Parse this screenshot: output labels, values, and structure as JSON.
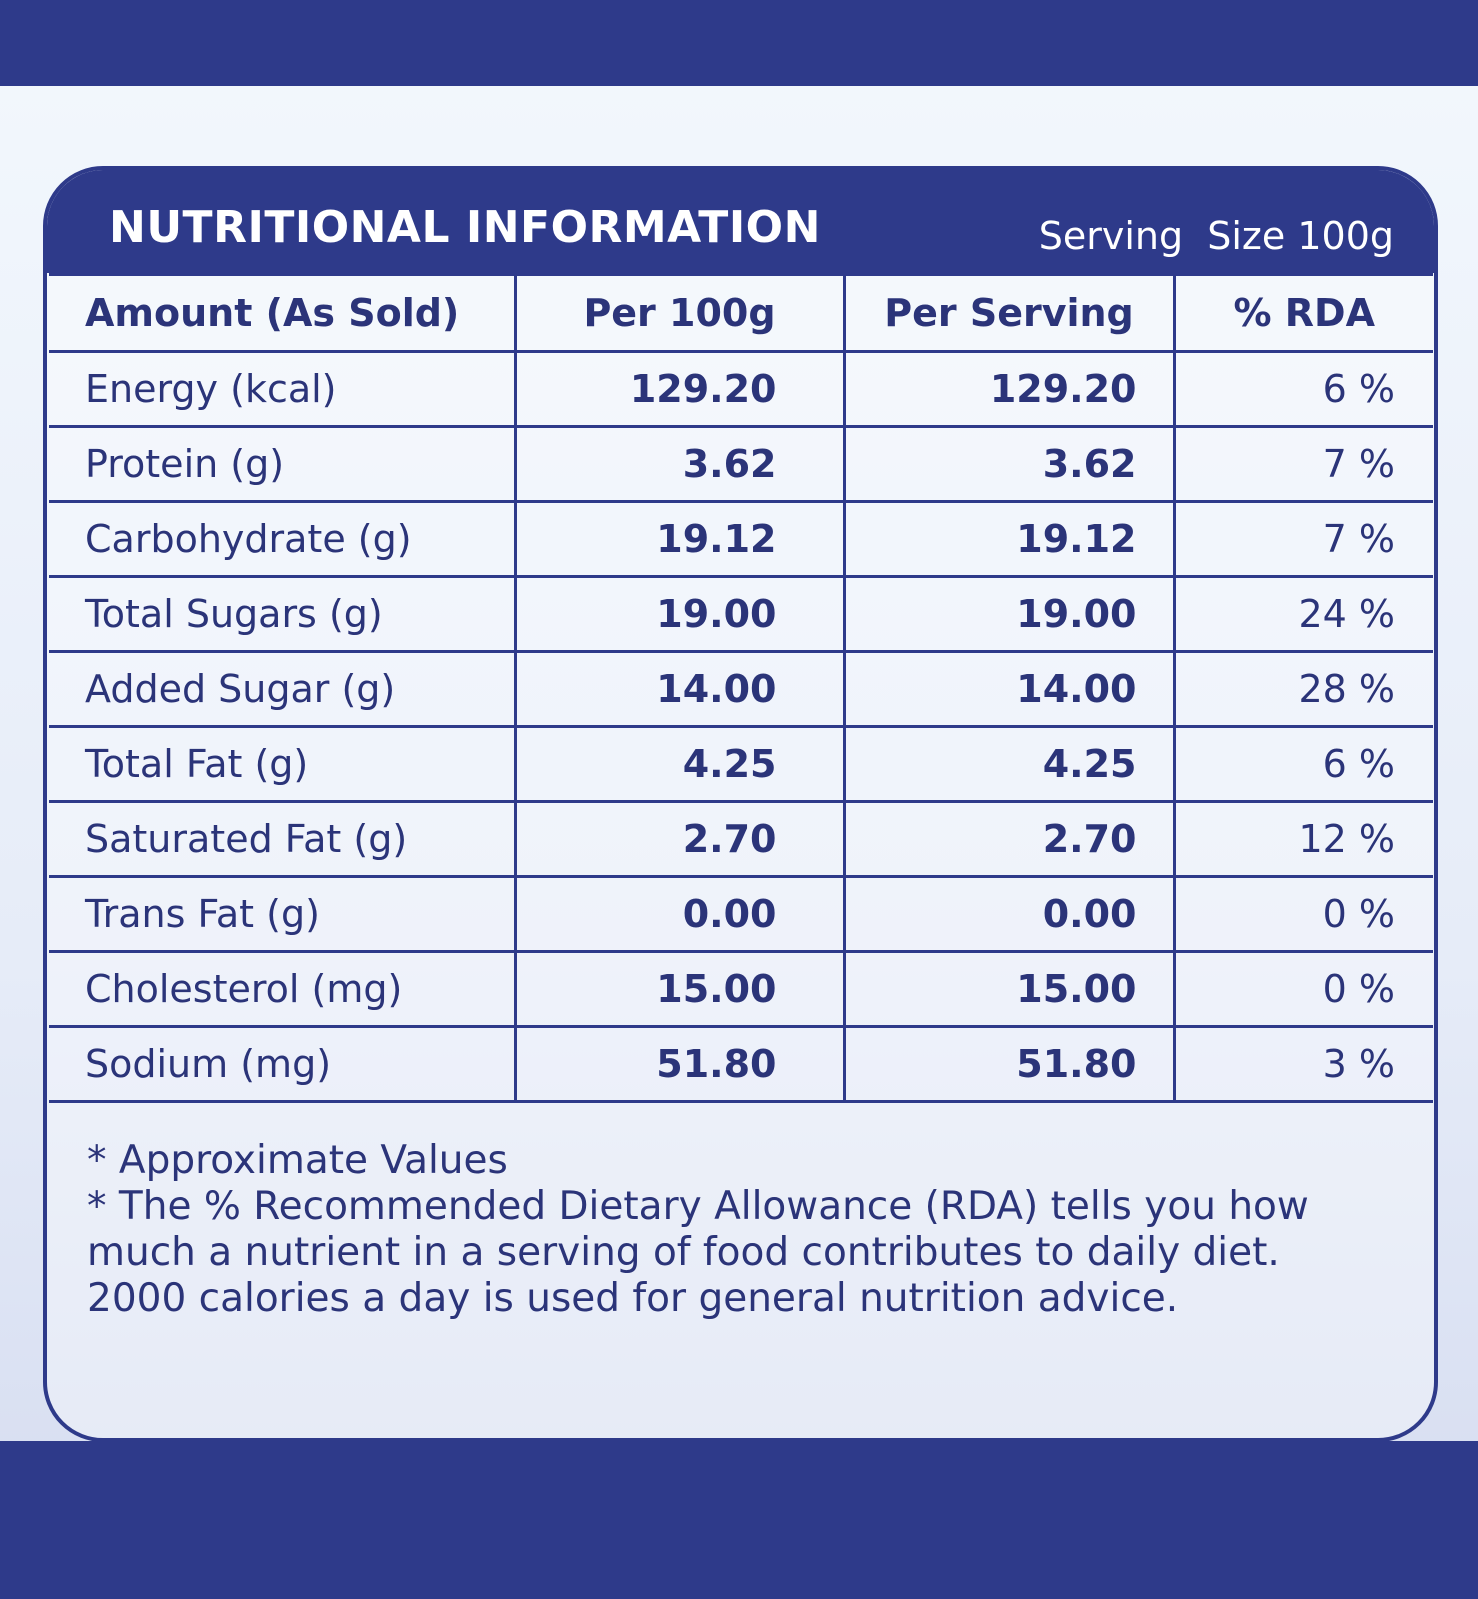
{
  "header": {
    "title": "NUTRITIONAL INFORMATION",
    "serving_size": "Serving  Size 100g"
  },
  "table": {
    "columns": [
      "Amount (As Sold)",
      "Per 100g",
      "Per Serving",
      "% RDA"
    ],
    "rows": [
      [
        "Energy (kcal)",
        "129.20",
        "129.20",
        "6 %"
      ],
      [
        "Protein (g)",
        "3.62",
        "3.62",
        "7 %"
      ],
      [
        "Carbohydrate (g)",
        "19.12",
        "19.12",
        "7 %"
      ],
      [
        "Total Sugars (g)",
        "19.00",
        "19.00",
        "24 %"
      ],
      [
        "Added Sugar (g)",
        "14.00",
        "14.00",
        "28 %"
      ],
      [
        "Total Fat (g)",
        "4.25",
        "4.25",
        "6 %"
      ],
      [
        "Saturated Fat (g)",
        "2.70",
        "2.70",
        "12 %"
      ],
      [
        "Trans Fat (g)",
        "0.00",
        "0.00",
        "0 %"
      ],
      [
        "Cholesterol (mg)",
        "15.00",
        "15.00",
        "0 %"
      ],
      [
        "Sodium (mg)",
        "51.80",
        "51.80",
        "3 %"
      ]
    ]
  },
  "footnotes": [
    "* Approximate Values",
    "* The % Recommended Dietary Allowance (RDA) tells you how much a nutrient in a serving of food contributes to daily diet. 2000 calories a day is used for general nutrition advice."
  ]
}
